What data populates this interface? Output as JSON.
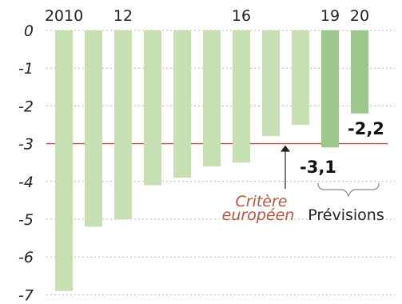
{
  "chart_data": {
    "type": "bar",
    "categories": [
      "2010",
      "2011",
      "2012",
      "2013",
      "2014",
      "2015",
      "2016",
      "2017",
      "2018",
      "2019",
      "2020"
    ],
    "x_tick_labels": [
      "2010",
      "",
      "12",
      "",
      "",
      "",
      "16",
      "",
      "",
      "19",
      "20"
    ],
    "values": [
      -6.9,
      -5.2,
      -5.0,
      -4.1,
      -3.9,
      -3.6,
      -3.5,
      -2.8,
      -2.5,
      -3.1,
      -2.2
    ],
    "forecast_from_index": 9,
    "ylim": [
      -7,
      0
    ],
    "y_ticks": [
      0,
      -1,
      -2,
      -3,
      -4,
      -5,
      -6,
      -7
    ],
    "y_tick_labels": [
      "0",
      "-1",
      "-2",
      "-3",
      "-4",
      "-5",
      "-6",
      "-7"
    ],
    "grid": "dotted horizontal",
    "reference_line": {
      "value": -3,
      "label_line1": "Critère",
      "label_line2": "européen",
      "color": "#b4573f"
    },
    "data_labels": [
      {
        "index": 9,
        "text": "-3,1"
      },
      {
        "index": 10,
        "text": "-2,2"
      }
    ],
    "forecast_label": "Prévisions",
    "colors": {
      "actual": "#c6e0b4",
      "forecast": "#9cc98b",
      "grid": "#b8b8b8",
      "axis_text": "#222222"
    }
  }
}
